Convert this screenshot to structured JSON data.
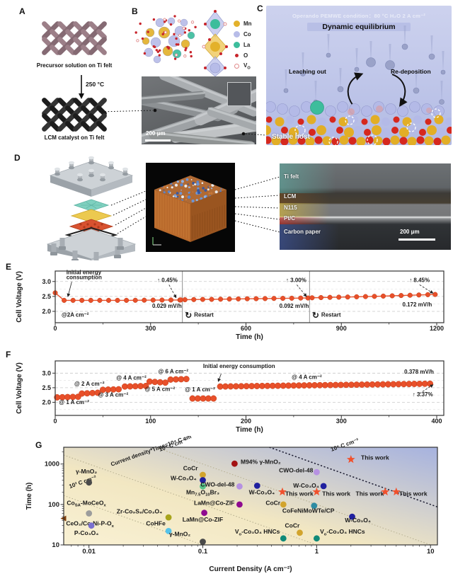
{
  "labels": {
    "A": "A",
    "B": "B",
    "C": "C",
    "D": "D",
    "E": "E",
    "F": "F",
    "G": "G"
  },
  "panels": {
    "A": {
      "caption_top": "Precursor solution on Ti felt",
      "temp": "250 °C",
      "caption_bottom": "LCM catalyst on Ti felt"
    },
    "B": {
      "legend": [
        {
          "name": "Mn",
          "color": "#E3B12B",
          "style": "large"
        },
        {
          "name": "Co",
          "color": "#B7BCE8",
          "style": "large"
        },
        {
          "name": "La",
          "color": "#3DBD9C",
          "style": "large"
        },
        {
          "name": "O",
          "color": "#C8242B",
          "style": "small"
        },
        {
          "name": "V_{O}",
          "color": "#E08A8A",
          "style": "open"
        }
      ],
      "scale_bar": "200 μm"
    },
    "C": {
      "header": "Operando PEMWE condition：80 °C H₂O 2 A cm⁻²",
      "title": "Dynamic equilibrium",
      "leaching": "Leaching out",
      "redeposition": "Re-deposition",
      "stable": "Stable host"
    },
    "D": {
      "layers": [
        "Ti felt",
        "LCM",
        "N115",
        "Pt/C",
        "Carbon paper"
      ],
      "scale_bar": "200 μm"
    }
  },
  "chart_data": [
    {
      "id": "E",
      "type": "line",
      "xlabel": "Time (h)",
      "ylabel": "Cell Voltage (V)",
      "xlim": [
        0,
        1200
      ],
      "xticks": [
        0,
        300,
        600,
        900,
        1200
      ],
      "xminor": [
        150,
        450,
        750,
        1050
      ],
      "ylim": [
        1.62,
        3.35
      ],
      "yticks": [
        2.0,
        2.5,
        3.0
      ],
      "yminor": [
        2.25,
        2.75
      ],
      "series_color": "#E8502A",
      "dot_every": 28,
      "runs": [
        {
          "points": [
            [
              0,
              2.62
            ],
            [
              25,
              2.37
            ],
            [
              200,
              2.368
            ],
            [
              395,
              2.382
            ]
          ]
        },
        {
          "points": [
            [
              408,
              2.39
            ],
            [
              600,
              2.42
            ],
            [
              795,
              2.447
            ]
          ]
        },
        {
          "points": [
            [
              808,
              2.455
            ],
            [
              1000,
              2.5
            ],
            [
              1195,
              2.565
            ]
          ]
        }
      ],
      "dividers": [
        400,
        800
      ],
      "annotations": [
        {
          "text": "Initial energy",
          "x": 35,
          "y": 3.24,
          "anchor": "start"
        },
        {
          "text": "consumption",
          "x": 35,
          "y": 3.08,
          "anchor": "start"
        },
        {
          "text": "↑ 0.45%",
          "x": 385,
          "y": 2.98,
          "anchor": "end"
        },
        {
          "text": "0.029 mV/h",
          "x": 398,
          "y": 2.12,
          "anchor": "end"
        },
        {
          "text": "↑ 3.00%",
          "x": 790,
          "y": 2.98,
          "anchor": "end"
        },
        {
          "text": "0.092 mV/h",
          "x": 798,
          "y": 2.12,
          "anchor": "end"
        },
        {
          "text": "↑ 8.45%",
          "x": 1178,
          "y": 2.98,
          "anchor": "end"
        },
        {
          "text": "0.172 mV/h",
          "x": 1185,
          "y": 2.17,
          "anchor": "end"
        },
        {
          "text": "@2A cm⁻²",
          "x": 20,
          "y": 1.82,
          "anchor": "start"
        }
      ],
      "pointers": [
        {
          "x1": 358,
          "y1": 2.89,
          "x2": 380,
          "y2": 2.46,
          "dash": true
        },
        {
          "x1": 760,
          "y1": 2.89,
          "x2": 790,
          "y2": 2.5,
          "dash": true
        },
        {
          "x1": 1146,
          "y1": 2.89,
          "x2": 1188,
          "y2": 2.61,
          "dash": true
        },
        {
          "x1": 52,
          "y1": 2.99,
          "x2": 40,
          "y2": 2.5,
          "dash": false
        }
      ],
      "restarts": [
        {
          "x": 408,
          "y": 1.82,
          "icon": "restart",
          "label": "Restart"
        },
        {
          "x": 808,
          "y": 1.82,
          "icon": "restart",
          "label": "Restart"
        }
      ]
    },
    {
      "id": "F",
      "type": "dots",
      "xlabel": "Time (h)",
      "ylabel": "Cell Voltage (V)",
      "xlim": [
        0,
        400
      ],
      "xticks": [
        0,
        100,
        200,
        300,
        400
      ],
      "xminor": [
        50,
        150,
        250,
        350
      ],
      "ylim": [
        1.55,
        3.42
      ],
      "yticks": [
        2.0,
        2.5,
        3.0
      ],
      "yminor": [
        1.75,
        2.25,
        2.75
      ],
      "series_color": "#E8502A",
      "dot_every": 5.5,
      "segments": [
        {
          "current": "1 A cm⁻²",
          "t": [
            2,
            25
          ],
          "v": [
            2.17,
            2.19
          ]
        },
        {
          "current": "2 A cm⁻²",
          "t": [
            28,
            47
          ],
          "v": [
            2.3,
            2.33
          ]
        },
        {
          "current": "3 A cm⁻²",
          "t": [
            50,
            70
          ],
          "v": [
            2.43,
            2.45
          ]
        },
        {
          "current": "4 A cm⁻²",
          "t": [
            73,
            96
          ],
          "v": [
            2.54,
            2.56
          ]
        },
        {
          "current": "5 A cm⁻²",
          "t": [
            99,
            118
          ],
          "v": [
            2.71,
            2.67
          ]
        },
        {
          "current": "6 A cm⁻²",
          "t": [
            121,
            140
          ],
          "v": [
            2.78,
            2.8
          ]
        },
        {
          "current": "1 A cm⁻²",
          "t": [
            144,
            168
          ],
          "v": [
            2.13,
            2.13
          ]
        },
        {
          "current": "4 A cm⁻²",
          "t": [
            173,
            398
          ],
          "v": [
            2.54,
            2.64
          ]
        }
      ],
      "annotations": [
        {
          "text": "@ 1 A cm⁻²",
          "x": 4,
          "y": 1.94,
          "anchor": "start"
        },
        {
          "text": "@ 2 A cm⁻²",
          "x": 20,
          "y": 2.57,
          "anchor": "start"
        },
        {
          "text": "@ 3 A cm⁻²",
          "x": 45,
          "y": 2.19,
          "anchor": "start"
        },
        {
          "text": "@ 4 A cm⁻²",
          "x": 64,
          "y": 2.78,
          "anchor": "start"
        },
        {
          "text": "@ 5 A cm⁻²",
          "x": 94,
          "y": 2.39,
          "anchor": "start"
        },
        {
          "text": "@ 6 A cm⁻²",
          "x": 108,
          "y": 3.0,
          "anchor": "start"
        },
        {
          "text": "@ 1 A cm⁻²",
          "x": 136,
          "y": 2.37,
          "anchor": "start"
        },
        {
          "text": "Initial energy consumption",
          "x": 155,
          "y": 3.18,
          "anchor": "start"
        },
        {
          "text": "@ 4 A cm⁻²",
          "x": 248,
          "y": 2.8,
          "anchor": "start"
        },
        {
          "text": "0.378 mV/h",
          "x": 397,
          "y": 2.98,
          "anchor": "end"
        },
        {
          "text": "↑ 3.37%",
          "x": 396,
          "y": 2.2,
          "anchor": "end"
        }
      ],
      "pointers": [
        {
          "x1": 174,
          "y1": 2.98,
          "x2": 171,
          "y2": 2.72,
          "dash": false
        },
        {
          "x1": 382,
          "y1": 2.3,
          "x2": 396,
          "y2": 2.6,
          "dash": true
        }
      ]
    },
    {
      "id": "G",
      "type": "scatter",
      "xlabel": "Current Density (A cm⁻²)",
      "ylabel": "Time (h)",
      "xscale": "log",
      "yscale": "log",
      "xlim": [
        0.006,
        11.5
      ],
      "ylim": [
        10,
        2600
      ],
      "xticks": [
        {
          "v": 0.01,
          "t": "0.01"
        },
        {
          "v": 0.1,
          "t": "0.1"
        },
        {
          "v": 1,
          "t": "1"
        },
        {
          "v": 10,
          "t": "10"
        }
      ],
      "yticks": [
        {
          "v": 10,
          "t": "10"
        },
        {
          "v": 100,
          "t": "100"
        },
        {
          "v": 1000,
          "t": "1000"
        }
      ],
      "iso_lines": [
        {
          "c": 1,
          "label": "10³ C cm⁻²",
          "lx": 0.0068,
          "ly": 250,
          "style": "gray"
        },
        {
          "c": 10,
          "label": "Current density*Time=10⁴ C cm⁻²",
          "lx": 0.0158,
          "ly": 880,
          "style": "gray"
        },
        {
          "c": 100,
          "label": "10⁵ C cm⁻²",
          "lx": 0.042,
          "ly": 2050,
          "style": "gray"
        },
        {
          "c": 1000,
          "label": "10⁶ C cm⁻²",
          "lx": 1.35,
          "ly": 2050,
          "style": "black"
        }
      ],
      "points": [
        {
          "name": "γ-MnO₂",
          "x": 0.01,
          "y": 350,
          "color": "#4A4A4A",
          "label_color": "#1A1A1A",
          "lx": 0.0095,
          "ly": 580,
          "anchor": "middle"
        },
        {
          "name": "Co_{SA}-MoCeO_{x}",
          "x": 0.01,
          "y": 60,
          "color": "#9C9C9C",
          "lx": 0.0095,
          "ly": 98,
          "anchor": "middle"
        },
        {
          "name": "CeO₂/Co-Ni-P-O_{x}",
          "x": 0.006,
          "y": 45,
          "color": "#80400E",
          "lx": 0.0063,
          "ly": 30,
          "anchor": "start",
          "marker": "tri-left"
        },
        {
          "name": "P-Co₃O₄",
          "x": 0.0105,
          "y": 30,
          "color": "#7A70CF",
          "lx": 0.0095,
          "ly": 17.5,
          "anchor": "middle"
        },
        {
          "name": "Zr-Co₉S₈/Co₃O₄",
          "x": 0.05,
          "y": 48,
          "color": "#A8A41C",
          "lx": 0.044,
          "ly": 60,
          "anchor": "end"
        },
        {
          "name": "CoHFe",
          "x": 0.05,
          "y": 22,
          "color": "#55C3EA",
          "lx": 0.047,
          "ly": 30,
          "anchor": "end"
        },
        {
          "name": "γ-MnO₂",
          "x": 0.1,
          "y": 12,
          "color": "#4A4A4A",
          "label_color": "#1A1A1A",
          "lx": 0.078,
          "ly": 16.5,
          "anchor": "end"
        },
        {
          "name": "CoCr",
          "x": 0.1,
          "y": 540,
          "color": "#D2A42C",
          "lx": 0.078,
          "ly": 700,
          "anchor": "middle"
        },
        {
          "name": "W-Co₃O₄",
          "x": 0.1,
          "y": 400,
          "color": "#20209F",
          "lx": 0.088,
          "ly": 400,
          "anchor": "end"
        },
        {
          "name": "Mn_{7.5}O_{10}Br₃",
          "x": 0.1,
          "y": 280,
          "color": "#57C287",
          "lx": 0.1,
          "ly": 180,
          "anchor": "middle"
        },
        {
          "name": "CWO-del-48",
          "x": 0.21,
          "y": 280,
          "color": "#B691E2",
          "lx": 0.19,
          "ly": 278,
          "anchor": "end"
        },
        {
          "name": "W-Co₃O₄",
          "x": 0.3,
          "y": 290,
          "color": "#20209F",
          "lx": 0.33,
          "ly": 180,
          "anchor": "middle"
        },
        {
          "name": "M94% γ-MnO₂",
          "x": 0.19,
          "y": 1020,
          "color": "#A31212",
          "lx": 0.215,
          "ly": 1000,
          "anchor": "start"
        },
        {
          "name": "LaMn@Co-ZIF",
          "x": 0.21,
          "y": 100,
          "color": "#8F0B8F",
          "lx": 0.19,
          "ly": 98,
          "anchor": "end"
        },
        {
          "name": "LaMn@Co-ZIF",
          "x": 0.103,
          "y": 62,
          "color": "#8F0B8F",
          "lx": 0.1,
          "ly": 38,
          "anchor": "middle"
        },
        {
          "name": "CWO-del-48",
          "x": 1.0,
          "y": 630,
          "color": "#B691E2",
          "lx": 0.93,
          "ly": 620,
          "anchor": "end"
        },
        {
          "name": "W-Co₃O₄",
          "x": 1.15,
          "y": 285,
          "color": "#20209F",
          "lx": 1.05,
          "ly": 262,
          "anchor": "end"
        },
        {
          "name": "CoCr",
          "x": 0.51,
          "y": 100,
          "color": "#D2A42C",
          "lx": 0.48,
          "ly": 98,
          "anchor": "end"
        },
        {
          "name": "CoFeNiMoWTe/CP",
          "x": 0.95,
          "y": 93,
          "color": "#2F8CA3",
          "lx": 1.43,
          "ly": 62,
          "anchor": "end"
        },
        {
          "name": "CoCr",
          "x": 0.71,
          "y": 20,
          "color": "#D2A42C",
          "lx": 0.61,
          "ly": 27,
          "anchor": "middle"
        },
        {
          "name": "V_{o}-Co₃O₄ HNCs",
          "x": 0.51,
          "y": 14.5,
          "color": "#108A78",
          "lx": 0.475,
          "ly": 19,
          "anchor": "end"
        },
        {
          "name": "V_{o}-Co₃O₄ HNCs",
          "x": 1.0,
          "y": 14.5,
          "color": "#108A78",
          "lx": 1.07,
          "ly": 19,
          "anchor": "start"
        },
        {
          "name": "W-Co₃O₄",
          "x": 2.05,
          "y": 50,
          "color": "#20209F",
          "lx": 2.3,
          "ly": 36,
          "anchor": "middle"
        }
      ],
      "star_color": "#F1512D",
      "star_label": "This work",
      "stars": [
        {
          "x": 0.5,
          "y": 205,
          "lx": 0.53,
          "ly": 165,
          "anchor": "start"
        },
        {
          "x": 1.0,
          "y": 205,
          "lx": 1.12,
          "ly": 165,
          "anchor": "start"
        },
        {
          "x": 4.0,
          "y": 205,
          "lx": 2.2,
          "ly": 165,
          "anchor": "start"
        },
        {
          "x": 5.0,
          "y": 205,
          "lx": 5.3,
          "ly": 165,
          "anchor": "start"
        },
        {
          "x": 2.0,
          "y": 1300,
          "lx": 2.45,
          "ly": 1290,
          "anchor": "start"
        }
      ]
    }
  ]
}
